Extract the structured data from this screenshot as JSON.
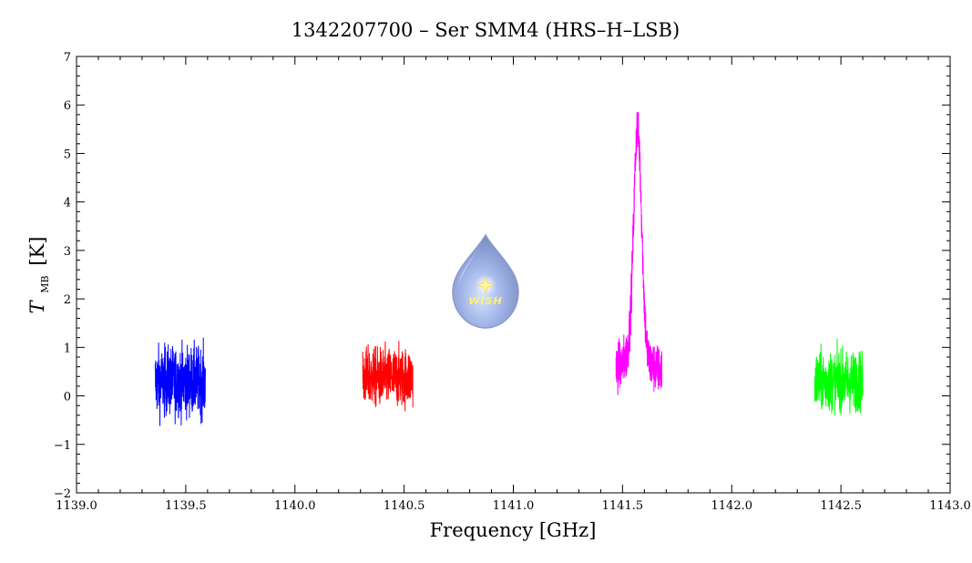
{
  "chart_data": {
    "type": "line",
    "title": "1342207700 – Ser SMM4 (HRS–H–LSB)",
    "xlabel": "Frequency [GHz]",
    "ylabel_main": "T",
    "ylabel_sub": "MB",
    "ylabel_unit": "[K]",
    "xlim": [
      1139.0,
      1143.0
    ],
    "ylim": [
      -2,
      7
    ],
    "x_ticks": [
      "1139.0",
      "1139.5",
      "1140.0",
      "1140.5",
      "1141.0",
      "1141.5",
      "1142.0",
      "1142.5",
      "1143.0"
    ],
    "y_ticks": [
      "−2",
      "−1",
      "0",
      "1",
      "2",
      "3",
      "4",
      "5",
      "6",
      "7"
    ],
    "grid": false,
    "logo": {
      "text": "WISH",
      "icon": "water-drop-logo-icon"
    },
    "series": [
      {
        "color": "#0000ff",
        "x_range": [
          1139.36,
          1139.59
        ],
        "baseline": 0.3,
        "noise": 0.35,
        "min": -0.95,
        "max": 1.35,
        "peak": null
      },
      {
        "color": "#ff0000",
        "x_range": [
          1140.31,
          1140.54
        ],
        "baseline": 0.38,
        "noise": 0.3,
        "min": -0.55,
        "max": 1.2,
        "peak": null
      },
      {
        "color": "#ff00ff",
        "x_range": [
          1141.47,
          1141.68
        ],
        "baseline": 0.45,
        "noise": 0.25,
        "min": -0.3,
        "max": 5.85,
        "peak": {
          "center": 1141.57,
          "amplitude": 5.3,
          "width": 0.018
        }
      },
      {
        "color": "#00ff00",
        "x_range": [
          1142.38,
          1142.6
        ],
        "baseline": 0.3,
        "noise": 0.3,
        "min": -0.4,
        "max": 1.45,
        "peak": null
      }
    ]
  }
}
